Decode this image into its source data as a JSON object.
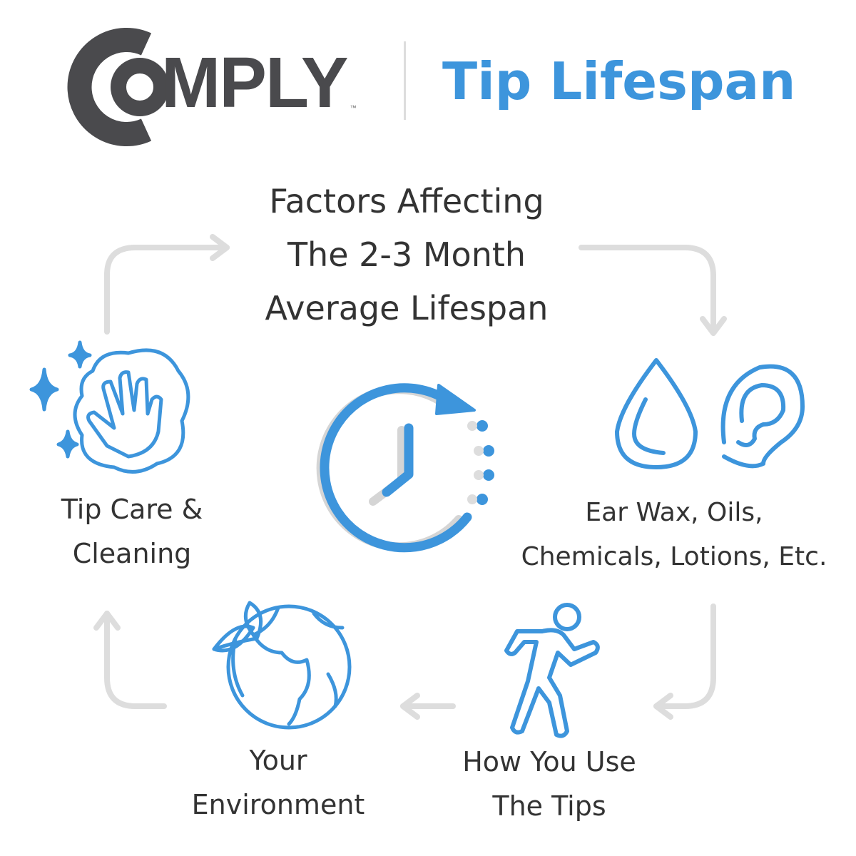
{
  "brand": {
    "logo_text": "COMPLY",
    "trademark": "™"
  },
  "title": "Tip Lifespan",
  "heading": [
    "Factors Affecting",
    "The 2-3 Month",
    "Average Lifespan"
  ],
  "factors": [
    {
      "label": [
        "Tip Care &",
        "Cleaning"
      ],
      "icon": "hand-wipe-sparkle-icon"
    },
    {
      "label": [
        "Ear Wax, Oils,",
        "Chemicals, Lotions, Etc."
      ],
      "icon": "drop-and-ear-icon"
    },
    {
      "label": [
        "How You Use",
        "The Tips"
      ],
      "icon": "running-person-icon"
    },
    {
      "label": [
        "Your",
        "Environment"
      ],
      "icon": "globe-leaf-icon"
    }
  ],
  "center_icon": "clock-cycle-icon",
  "colors": {
    "accent": "#3d95dc",
    "text": "#333333",
    "logo": "#4a4a4d",
    "arrow": "#dddddd"
  }
}
